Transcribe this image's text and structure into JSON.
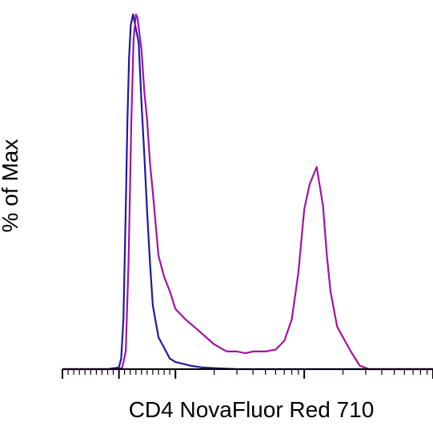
{
  "chart_data": {
    "type": "line",
    "title": "",
    "xlabel": "CD4 NovaFluor Red 710",
    "ylabel": "% of Max",
    "x_scale": "biexponential",
    "xlim": [
      -1000,
      100000
    ],
    "ylim": [
      0,
      100
    ],
    "grid": false,
    "legend": "none",
    "series": [
      {
        "color": "#1a1aa6",
        "x": [
          -1000,
          -200,
          0,
          40,
          80,
          120,
          150,
          180,
          210,
          250,
          300,
          350,
          400,
          450,
          500,
          550,
          600,
          700,
          800,
          900,
          1000,
          1300,
          1600,
          2000,
          3000,
          5000,
          10000,
          100000
        ],
        "y": [
          0,
          0,
          0.5,
          3,
          14,
          45,
          70,
          88,
          97,
          100,
          96,
          92,
          75,
          60,
          44,
          30,
          18,
          9,
          6,
          3,
          2,
          1,
          0.5,
          0.3,
          0,
          0,
          0,
          0
        ]
      },
      {
        "color": "#a312a6",
        "x": [
          -1000,
          0,
          60,
          120,
          170,
          220,
          260,
          300,
          330,
          360,
          400,
          450,
          500,
          550,
          600,
          700,
          800,
          900,
          1000,
          1200,
          1500,
          2000,
          2500,
          3000,
          3500,
          4000,
          5000,
          6000,
          7000,
          8000,
          9000,
          10000,
          11000,
          12500,
          14000,
          15000,
          16000,
          18000,
          20000,
          23000,
          27000,
          32000,
          40000,
          55000,
          100000
        ],
        "y": [
          0,
          0,
          0.5,
          5,
          30,
          70,
          93,
          100,
          99,
          95,
          90,
          78,
          70,
          58,
          50,
          32,
          26,
          22,
          17,
          14,
          11,
          7,
          5,
          5,
          4.5,
          5,
          5,
          5.5,
          8,
          14,
          27,
          45,
          52,
          57,
          46,
          32,
          22,
          12,
          9,
          5,
          1,
          0,
          0,
          0,
          0
        ]
      }
    ]
  }
}
